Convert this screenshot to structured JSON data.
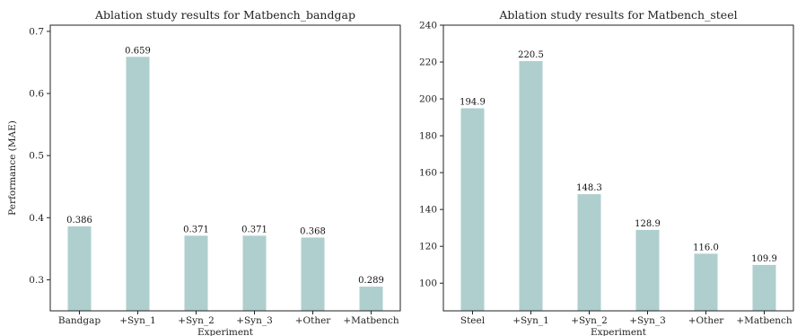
{
  "chart_data": [
    {
      "type": "bar",
      "title": "Ablation study results for Matbench_bandgap",
      "xlabel": "Experiment",
      "ylabel": "Performance (MAE)",
      "categories": [
        "Bandgap",
        "+Syn_1",
        "+Syn_2",
        "+Syn_3",
        "+Other",
        "+Matbench"
      ],
      "values": [
        0.386,
        0.659,
        0.371,
        0.371,
        0.368,
        0.289
      ],
      "value_labels": [
        "0.386",
        "0.659",
        "0.371",
        "0.371",
        "0.368",
        "0.289"
      ],
      "ylim": [
        0.25,
        0.71
      ],
      "yticks": [
        0.3,
        0.4,
        0.5,
        0.6,
        0.7
      ],
      "ytick_labels": [
        "0.3",
        "0.4",
        "0.5",
        "0.6",
        "0.7"
      ],
      "bar_color": "#aecfce",
      "grid": false
    },
    {
      "type": "bar",
      "title": "Ablation study results for Matbench_steel",
      "xlabel": "Experiment",
      "ylabel": "",
      "categories": [
        "Steel",
        "+Syn_1",
        "+Syn_2",
        "+Syn_3",
        "+Other",
        "+Matbench"
      ],
      "values": [
        194.9,
        220.5,
        148.3,
        128.9,
        116.0,
        109.9
      ],
      "value_labels": [
        "194.9",
        "220.5",
        "148.3",
        "128.9",
        "116.0",
        "109.9"
      ],
      "ylim": [
        85,
        240
      ],
      "yticks": [
        100,
        120,
        140,
        160,
        180,
        200,
        220,
        240
      ],
      "ytick_labels": [
        "100",
        "120",
        "140",
        "160",
        "180",
        "200",
        "220",
        "240"
      ],
      "bar_color": "#aecfce",
      "grid": false
    }
  ]
}
